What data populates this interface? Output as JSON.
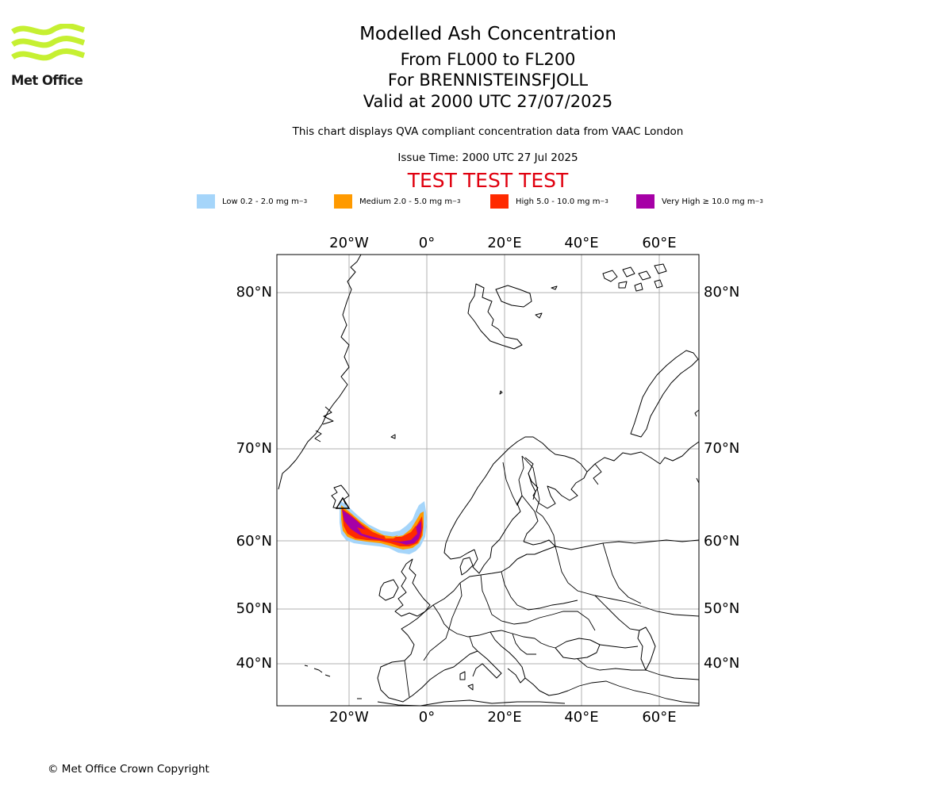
{
  "header": {
    "logo_text": "Met Office",
    "title": "Modelled Ash Concentration",
    "levels": "From FL000 to FL200",
    "volcano": "For BRENNISTEINSFJOLL",
    "valid": "Valid at 2000 UTC 27/07/2025",
    "description": "This chart displays QVA compliant concentration data from VAAC London",
    "issue_time": "Issue Time: 2000 UTC 27 Jul 2025",
    "test_banner": "TEST TEST TEST"
  },
  "legend": [
    {
      "label": "Low 0.2 - 2.0 mg m",
      "unit_exp": "−3",
      "color": "#a5d5fa"
    },
    {
      "label": "Medium 2.0 - 5.0 mg m",
      "unit_exp": "−3",
      "color": "#ff9a00"
    },
    {
      "label": "High 5.0 - 10.0 mg m",
      "unit_exp": "−3",
      "color": "#ff2a00"
    },
    {
      "label": "Very High  ≥  10.0 mg m",
      "unit_exp": "−3",
      "color": "#a600a6"
    }
  ],
  "map": {
    "projection": "stereographic",
    "lon_labels": [
      "20°W",
      "0°",
      "20°E",
      "40°E",
      "60°E"
    ],
    "lat_labels": [
      "80°N",
      "70°N",
      "60°N",
      "50°N",
      "40°N"
    ],
    "gridlines": true,
    "border_color": "#000000",
    "ash_colors": {
      "low": "#a5d5fa",
      "medium": "#ff9a00",
      "high": "#ff2a00",
      "very_high": "#a600a6"
    }
  },
  "footer": {
    "copyright": "© Met Office Crown Copyright"
  }
}
